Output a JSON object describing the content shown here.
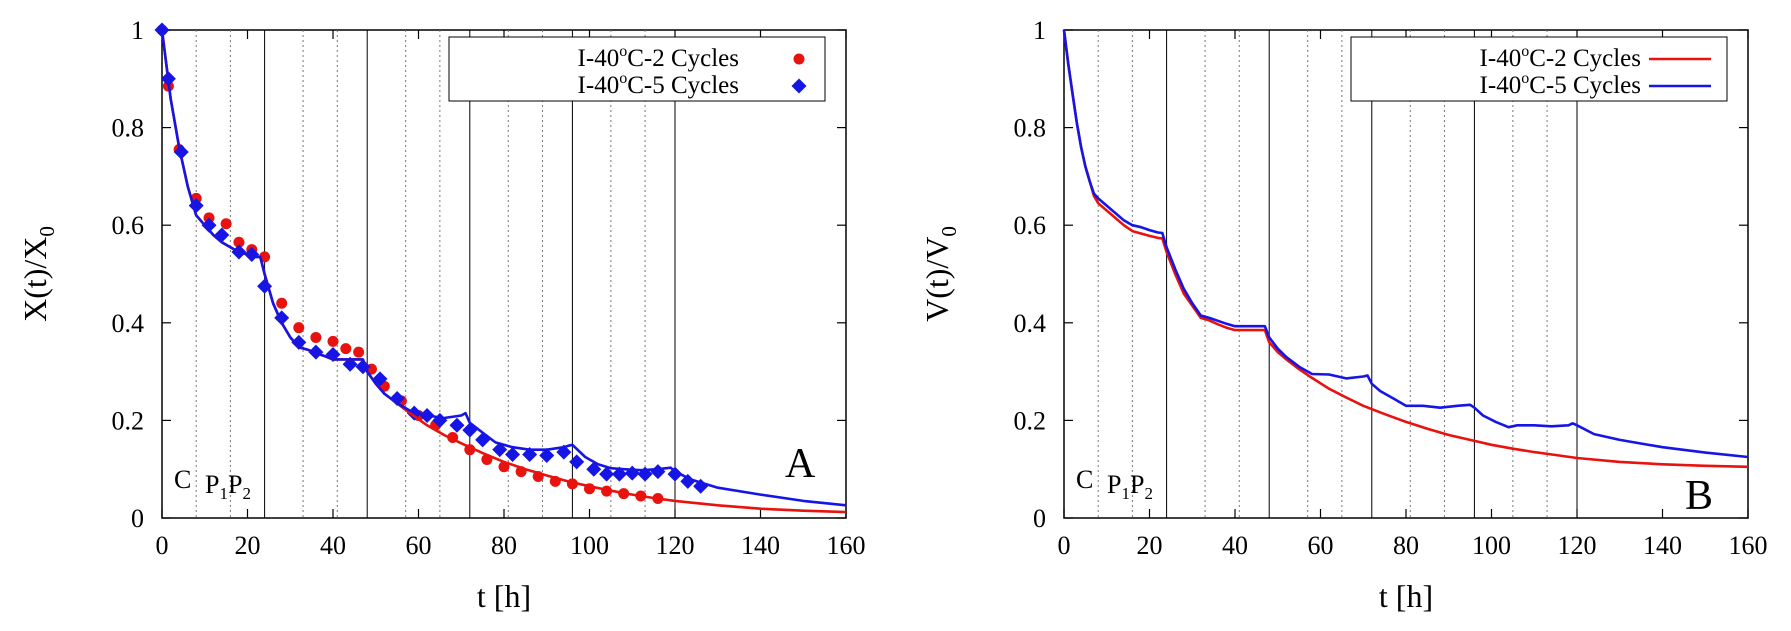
{
  "chart_data": [
    {
      "type": "scatter",
      "panel_label": "A",
      "ylabel": "X(t)/X",
      "ylabel_sub": "0",
      "xlabel": "t [h]",
      "xlim": [
        0,
        160
      ],
      "ylim": [
        0,
        1
      ],
      "xticks": [
        "0",
        "20",
        "40",
        "60",
        "80",
        "100",
        "120",
        "140",
        "160"
      ],
      "yticks": [
        "0",
        "0.2",
        "0.4",
        "0.6",
        "0.8",
        "1"
      ],
      "legend_position": "top-right",
      "phase_labels": {
        "c": "C",
        "p1": "P",
        "p1_sub": "1",
        "p2": "P",
        "p2_sub": "2"
      },
      "series": [
        {
          "name": "I-40°C-2 Cycles",
          "legend_parts": [
            "I-40",
            "o",
            "C-2 Cycles"
          ],
          "color": "#e8120f",
          "marker": "circle",
          "x": [
            0,
            1.5,
            4,
            8,
            11,
            15,
            18,
            21,
            24,
            28,
            32,
            36,
            40,
            43,
            46,
            49,
            52,
            56,
            60,
            64,
            68,
            72,
            76,
            80,
            84,
            88,
            92,
            96,
            100,
            104,
            108,
            112,
            116
          ],
          "y": [
            1.0,
            0.885,
            0.755,
            0.655,
            0.615,
            0.603,
            0.565,
            0.55,
            0.535,
            0.44,
            0.39,
            0.37,
            0.362,
            0.347,
            0.34,
            0.305,
            0.27,
            0.24,
            0.21,
            0.19,
            0.165,
            0.14,
            0.12,
            0.105,
            0.095,
            0.085,
            0.075,
            0.07,
            0.06,
            0.055,
            0.05,
            0.045,
            0.04
          ]
        },
        {
          "name": "I-40°C-5 Cycles",
          "legend_parts": [
            "I-40",
            "o",
            "C-5 Cycles"
          ],
          "color": "#1515e6",
          "marker": "diamond",
          "x": [
            0,
            1.5,
            4.5,
            8,
            11,
            14,
            18,
            21,
            24,
            28,
            32,
            36,
            40,
            44,
            47,
            51,
            55,
            59,
            62,
            65,
            69,
            72,
            75,
            79,
            82,
            86,
            90,
            94,
            97,
            101,
            104,
            107,
            110,
            113,
            116,
            120,
            123,
            126
          ],
          "y": [
            1.0,
            0.9,
            0.75,
            0.64,
            0.6,
            0.58,
            0.545,
            0.54,
            0.475,
            0.41,
            0.36,
            0.34,
            0.335,
            0.315,
            0.31,
            0.285,
            0.245,
            0.215,
            0.21,
            0.2,
            0.19,
            0.18,
            0.16,
            0.14,
            0.13,
            0.13,
            0.128,
            0.135,
            0.115,
            0.1,
            0.09,
            0.09,
            0.092,
            0.09,
            0.095,
            0.09,
            0.075,
            0.065
          ]
        },
        {
          "name": "I-40°C-2 Cycles fit",
          "color": "#e8120f",
          "marker": "line",
          "x": [
            0,
            2,
            4,
            6,
            8,
            10,
            12,
            14,
            16,
            18,
            20,
            22,
            23,
            24,
            26,
            28,
            30,
            32,
            34,
            36,
            38,
            40,
            42,
            44,
            46,
            47,
            48,
            50,
            52,
            55,
            58,
            62,
            66,
            70,
            75,
            80,
            85,
            90,
            95,
            100,
            105,
            110,
            115,
            120,
            130,
            140,
            150,
            160
          ],
          "y": [
            1.0,
            0.86,
            0.76,
            0.68,
            0.62,
            0.6,
            0.58,
            0.565,
            0.555,
            0.545,
            0.54,
            0.535,
            0.535,
            0.5,
            0.44,
            0.4,
            0.37,
            0.35,
            0.345,
            0.338,
            0.332,
            0.325,
            0.325,
            0.325,
            0.325,
            0.325,
            0.3,
            0.275,
            0.255,
            0.235,
            0.215,
            0.19,
            0.17,
            0.153,
            0.133,
            0.115,
            0.1,
            0.087,
            0.075,
            0.065,
            0.056,
            0.048,
            0.041,
            0.035,
            0.026,
            0.019,
            0.015,
            0.012
          ]
        },
        {
          "name": "I-40°C-5 Cycles fit",
          "color": "#1515e6",
          "marker": "line",
          "x": [
            0,
            2,
            4,
            6,
            8,
            10,
            12,
            14,
            16,
            18,
            20,
            22,
            23,
            24,
            26,
            28,
            30,
            32,
            34,
            36,
            38,
            40,
            42,
            44,
            46,
            47,
            48,
            50,
            52,
            55,
            58,
            62,
            66,
            70,
            71,
            72,
            75,
            78,
            82,
            86,
            90,
            94,
            95,
            96,
            99,
            102,
            105,
            108,
            112,
            116,
            119,
            120,
            124,
            130,
            140,
            150,
            160
          ],
          "y": [
            1.0,
            0.86,
            0.76,
            0.68,
            0.62,
            0.6,
            0.58,
            0.565,
            0.555,
            0.545,
            0.54,
            0.535,
            0.535,
            0.5,
            0.44,
            0.4,
            0.37,
            0.35,
            0.345,
            0.338,
            0.332,
            0.325,
            0.325,
            0.325,
            0.325,
            0.325,
            0.3,
            0.275,
            0.255,
            0.235,
            0.22,
            0.21,
            0.205,
            0.21,
            0.215,
            0.195,
            0.175,
            0.155,
            0.145,
            0.14,
            0.14,
            0.145,
            0.148,
            0.15,
            0.125,
            0.11,
            0.102,
            0.1,
            0.098,
            0.1,
            0.103,
            0.095,
            0.078,
            0.062,
            0.048,
            0.035,
            0.026
          ]
        }
      ]
    },
    {
      "type": "line",
      "panel_label": "B",
      "ylabel": "V(t)/V",
      "ylabel_sub": "0",
      "xlabel": "t [h]",
      "xlim": [
        0,
        160
      ],
      "ylim": [
        0,
        1
      ],
      "xticks": [
        "0",
        "20",
        "40",
        "60",
        "80",
        "100",
        "120",
        "140",
        "160"
      ],
      "yticks": [
        "0",
        "0.2",
        "0.4",
        "0.6",
        "0.8",
        "1"
      ],
      "legend_position": "top-right",
      "phase_labels": {
        "c": "C",
        "p1": "P",
        "p1_sub": "1",
        "p2": "P",
        "p2_sub": "2"
      },
      "series": [
        {
          "name": "I-40°C-2 Cycles",
          "legend_parts": [
            "I-40",
            "o",
            "C-2 Cycles"
          ],
          "color": "#e8120f",
          "x": [
            0,
            1,
            2,
            3,
            4,
            5,
            6,
            7,
            8,
            10,
            12,
            14,
            16,
            18,
            20,
            22,
            23,
            24,
            26,
            28,
            30,
            32,
            34,
            36,
            38,
            40,
            42,
            44,
            46,
            47,
            48,
            50,
            52,
            55,
            58,
            62,
            66,
            70,
            75,
            80,
            85,
            90,
            95,
            100,
            105,
            110,
            115,
            120,
            130,
            140,
            150,
            160
          ],
          "y": [
            1.0,
            0.93,
            0.87,
            0.81,
            0.76,
            0.72,
            0.69,
            0.66,
            0.645,
            0.63,
            0.615,
            0.6,
            0.588,
            0.583,
            0.578,
            0.574,
            0.573,
            0.545,
            0.5,
            0.46,
            0.435,
            0.41,
            0.405,
            0.397,
            0.39,
            0.385,
            0.385,
            0.385,
            0.385,
            0.385,
            0.36,
            0.34,
            0.325,
            0.305,
            0.287,
            0.265,
            0.247,
            0.23,
            0.213,
            0.197,
            0.183,
            0.17,
            0.16,
            0.15,
            0.142,
            0.135,
            0.129,
            0.123,
            0.115,
            0.11,
            0.107,
            0.105
          ]
        },
        {
          "name": "I-40°C-5 Cycles",
          "legend_parts": [
            "I-40",
            "o",
            "C-5 Cycles"
          ],
          "color": "#1515e6",
          "x": [
            0,
            1,
            2,
            3,
            4,
            5,
            6,
            7,
            8,
            10,
            12,
            14,
            16,
            18,
            20,
            22,
            23,
            24,
            26,
            28,
            30,
            32,
            34,
            36,
            38,
            40,
            42,
            44,
            46,
            47,
            48,
            50,
            52,
            55,
            58,
            62,
            66,
            70,
            71,
            72,
            74,
            77,
            80,
            84,
            88,
            92,
            95,
            96,
            98,
            101,
            104,
            106,
            110,
            114,
            118,
            119,
            120,
            124,
            130,
            140,
            150,
            160
          ],
          "y": [
            1.0,
            0.93,
            0.87,
            0.81,
            0.76,
            0.72,
            0.69,
            0.665,
            0.655,
            0.64,
            0.625,
            0.61,
            0.6,
            0.596,
            0.59,
            0.585,
            0.584,
            0.555,
            0.51,
            0.47,
            0.44,
            0.415,
            0.41,
            0.404,
            0.398,
            0.393,
            0.393,
            0.393,
            0.393,
            0.393,
            0.37,
            0.347,
            0.33,
            0.31,
            0.295,
            0.294,
            0.286,
            0.29,
            0.292,
            0.275,
            0.26,
            0.245,
            0.23,
            0.23,
            0.226,
            0.23,
            0.232,
            0.226,
            0.21,
            0.197,
            0.186,
            0.19,
            0.19,
            0.188,
            0.19,
            0.194,
            0.19,
            0.172,
            0.16,
            0.145,
            0.134,
            0.125
          ]
        }
      ]
    }
  ]
}
